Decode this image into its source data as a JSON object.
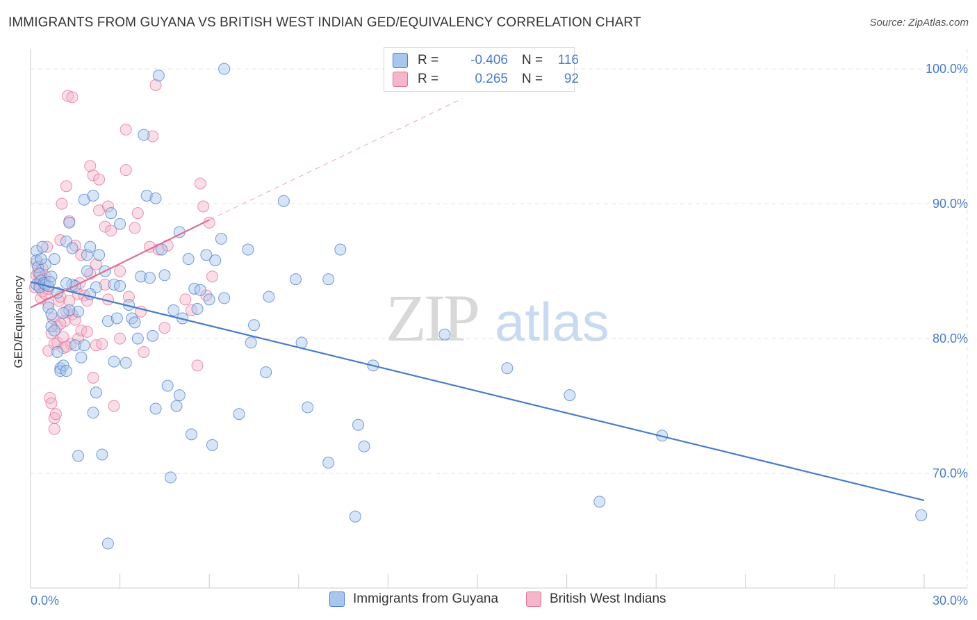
{
  "title": "IMMIGRANTS FROM GUYANA VS BRITISH WEST INDIAN GED/EQUIVALENCY CORRELATION CHART",
  "source": "Source: ZipAtlas.com",
  "watermark": {
    "zip": "ZIP",
    "atlas": "atlas"
  },
  "legend": {
    "rows": [
      {
        "r_label": "R =",
        "r_value": "-0.406",
        "n_label": "N =",
        "n_value": "116"
      },
      {
        "r_label": "R =",
        "r_value": "0.265",
        "n_label": "N =",
        "n_value": "92"
      }
    ]
  },
  "colors": {
    "blue": "#4a7cc7",
    "pink": "#e07095",
    "blue_fill": "#a9c6ee",
    "pink_fill": "#f5b6c9",
    "grid": "#e3e3e3"
  },
  "chart_data": {
    "type": "scatter",
    "ylabel": "GED/Equivalency",
    "xlim": [
      0,
      30
    ],
    "ylim": [
      61.5,
      101.5
    ],
    "x_tick_labels": [
      {
        "x": 0,
        "label": "0.0%"
      },
      {
        "x": 30,
        "label": "30.0%"
      }
    ],
    "y_tick_labels": [
      {
        "y": 70,
        "label": "70.0%"
      },
      {
        "y": 80,
        "label": "80.0%"
      },
      {
        "y": 90,
        "label": "90.0%"
      },
      {
        "y": 100,
        "label": "100.0%"
      }
    ],
    "grid": true,
    "legend_position": "top-center",
    "series": [
      {
        "name": "Immigrants from Guyana",
        "color": "#4a7cc7",
        "trend": {
          "x0": 0,
          "y0": 84.2,
          "x1": 30,
          "y1": 68.0,
          "style": "solid"
        },
        "points": [
          [
            0.2,
            86.5
          ],
          [
            0.2,
            85.8
          ],
          [
            0.25,
            85.3
          ],
          [
            0.3,
            84.8
          ],
          [
            0.35,
            84.3
          ],
          [
            0.4,
            86.8
          ],
          [
            0.2,
            84.0
          ],
          [
            0.3,
            83.8
          ],
          [
            0.45,
            84.1
          ],
          [
            0.5,
            84.0
          ],
          [
            0.6,
            83.9
          ],
          [
            0.6,
            82.3
          ],
          [
            0.7,
            81.8
          ],
          [
            0.7,
            80.9
          ],
          [
            0.8,
            80.6
          ],
          [
            0.8,
            85.9
          ],
          [
            0.9,
            79.0
          ],
          [
            1.0,
            77.8
          ],
          [
            1.0,
            77.6
          ],
          [
            1.1,
            78.0
          ],
          [
            1.2,
            77.6
          ],
          [
            1.2,
            87.2
          ],
          [
            1.3,
            88.6
          ],
          [
            1.4,
            86.7
          ],
          [
            1.4,
            84.0
          ],
          [
            1.5,
            83.9
          ],
          [
            1.5,
            79.5
          ],
          [
            1.6,
            82.0
          ],
          [
            1.7,
            78.6
          ],
          [
            1.8,
            90.3
          ],
          [
            1.8,
            79.5
          ],
          [
            1.9,
            86.2
          ],
          [
            1.9,
            85.0
          ],
          [
            2.0,
            86.8
          ],
          [
            2.1,
            90.6
          ],
          [
            2.2,
            83.8
          ],
          [
            2.2,
            76.0
          ],
          [
            2.1,
            74.5
          ],
          [
            2.3,
            86.2
          ],
          [
            2.5,
            85.0
          ],
          [
            2.6,
            81.3
          ],
          [
            2.7,
            89.3
          ],
          [
            2.8,
            84.0
          ],
          [
            2.8,
            78.3
          ],
          [
            2.9,
            81.5
          ],
          [
            3.0,
            88.5
          ],
          [
            3.2,
            78.2
          ],
          [
            3.3,
            82.5
          ],
          [
            3.4,
            81.5
          ],
          [
            3.5,
            81.2
          ],
          [
            3.6,
            80.0
          ],
          [
            3.7,
            84.6
          ],
          [
            3.8,
            95.1
          ],
          [
            3.9,
            90.6
          ],
          [
            4.0,
            84.5
          ],
          [
            4.1,
            80.2
          ],
          [
            4.2,
            90.4
          ],
          [
            4.3,
            99.5
          ],
          [
            4.4,
            86.6
          ],
          [
            4.5,
            84.7
          ],
          [
            4.6,
            76.5
          ],
          [
            4.7,
            69.7
          ],
          [
            4.8,
            82.1
          ],
          [
            4.9,
            75.0
          ],
          [
            5.0,
            87.9
          ],
          [
            5.0,
            75.8
          ],
          [
            5.1,
            81.5
          ],
          [
            5.3,
            85.9
          ],
          [
            5.4,
            72.9
          ],
          [
            5.5,
            83.7
          ],
          [
            5.6,
            82.2
          ],
          [
            5.7,
            83.6
          ],
          [
            5.9,
            86.2
          ],
          [
            6.0,
            82.9
          ],
          [
            6.1,
            72.1
          ],
          [
            6.2,
            85.8
          ],
          [
            6.4,
            87.4
          ],
          [
            6.5,
            100.0
          ],
          [
            6.5,
            83.0
          ],
          [
            7.0,
            74.4
          ],
          [
            7.3,
            86.6
          ],
          [
            7.4,
            79.7
          ],
          [
            7.5,
            81.0
          ],
          [
            7.9,
            77.5
          ],
          [
            8.0,
            83.1
          ],
          [
            8.5,
            90.2
          ],
          [
            8.9,
            84.4
          ],
          [
            9.1,
            79.7
          ],
          [
            9.3,
            74.9
          ],
          [
            10.0,
            70.8
          ],
          [
            10.0,
            84.4
          ],
          [
            10.4,
            86.6
          ],
          [
            10.9,
            66.8
          ],
          [
            11.0,
            73.6
          ],
          [
            11.2,
            72.0
          ],
          [
            11.5,
            78.0
          ],
          [
            13.9,
            80.3
          ],
          [
            16.0,
            77.8
          ],
          [
            18.1,
            75.8
          ],
          [
            19.1,
            67.9
          ],
          [
            21.2,
            72.8
          ],
          [
            29.9,
            66.9
          ],
          [
            1.6,
            71.3
          ],
          [
            2.4,
            71.4
          ],
          [
            2.6,
            64.8
          ],
          [
            4.2,
            74.8
          ],
          [
            1.2,
            84.1
          ],
          [
            0.9,
            83.4
          ],
          [
            1.3,
            82.1
          ],
          [
            0.7,
            84.6
          ],
          [
            2.0,
            83.3
          ],
          [
            3.0,
            83.9
          ],
          [
            1.1,
            81.9
          ],
          [
            0.5,
            85.5
          ],
          [
            0.35,
            85.9
          ],
          [
            0.65,
            84.2
          ]
        ]
      },
      {
        "name": "British West Indians",
        "color": "#e07095",
        "trend": {
          "x0": 0,
          "y0": 82.3,
          "x1": 6.0,
          "y1": 88.8,
          "style": "solid",
          "extend_to": {
            "x": 14.5,
            "y": 97.8
          },
          "extend_style": "dashed"
        },
        "points": [
          [
            0.2,
            85.6
          ],
          [
            0.25,
            84.9
          ],
          [
            0.3,
            84.5
          ],
          [
            0.3,
            83.9
          ],
          [
            0.35,
            83.0
          ],
          [
            0.4,
            83.5
          ],
          [
            0.45,
            84.4
          ],
          [
            0.5,
            84.6
          ],
          [
            0.5,
            83.3
          ],
          [
            0.55,
            86.8
          ],
          [
            0.6,
            82.6
          ],
          [
            0.6,
            79.1
          ],
          [
            0.65,
            75.6
          ],
          [
            0.7,
            75.2
          ],
          [
            0.7,
            80.4
          ],
          [
            0.75,
            81.5
          ],
          [
            0.8,
            73.3
          ],
          [
            0.8,
            74.1
          ],
          [
            0.85,
            74.4
          ],
          [
            0.9,
            79.7
          ],
          [
            0.9,
            80.9
          ],
          [
            0.95,
            82.8
          ],
          [
            1.0,
            83.1
          ],
          [
            1.0,
            87.3
          ],
          [
            1.05,
            90.0
          ],
          [
            1.1,
            79.3
          ],
          [
            1.1,
            80.1
          ],
          [
            1.15,
            81.3
          ],
          [
            1.2,
            82.0
          ],
          [
            1.2,
            91.3
          ],
          [
            1.25,
            98.0
          ],
          [
            1.3,
            88.7
          ],
          [
            1.3,
            82.8
          ],
          [
            1.35,
            79.6
          ],
          [
            1.4,
            81.8
          ],
          [
            1.4,
            97.9
          ],
          [
            1.5,
            81.4
          ],
          [
            1.5,
            86.9
          ],
          [
            1.6,
            80.0
          ],
          [
            1.6,
            83.3
          ],
          [
            1.65,
            84.1
          ],
          [
            1.7,
            80.6
          ],
          [
            1.8,
            83.2
          ],
          [
            1.9,
            82.8
          ],
          [
            2.0,
            92.8
          ],
          [
            2.1,
            92.1
          ],
          [
            2.1,
            77.1
          ],
          [
            2.2,
            79.5
          ],
          [
            2.3,
            89.5
          ],
          [
            2.3,
            91.8
          ],
          [
            2.4,
            79.6
          ],
          [
            2.5,
            84.0
          ],
          [
            2.5,
            88.3
          ],
          [
            2.6,
            89.8
          ],
          [
            2.6,
            82.9
          ],
          [
            2.7,
            88.0
          ],
          [
            2.8,
            75.0
          ],
          [
            3.0,
            80.0
          ],
          [
            3.0,
            85.0
          ],
          [
            3.2,
            92.5
          ],
          [
            3.2,
            95.5
          ],
          [
            3.3,
            83.1
          ],
          [
            3.5,
            88.2
          ],
          [
            3.6,
            89.3
          ],
          [
            3.7,
            82.0
          ],
          [
            3.8,
            79.0
          ],
          [
            4.0,
            86.8
          ],
          [
            4.1,
            95.0
          ],
          [
            4.2,
            98.8
          ],
          [
            4.3,
            86.6
          ],
          [
            4.5,
            80.8
          ],
          [
            4.6,
            86.9
          ],
          [
            5.2,
            82.9
          ],
          [
            5.4,
            82.1
          ],
          [
            5.6,
            78.0
          ],
          [
            5.7,
            91.5
          ],
          [
            5.8,
            89.8
          ],
          [
            5.9,
            83.2
          ],
          [
            6.0,
            88.6
          ],
          [
            6.1,
            84.6
          ],
          [
            0.3,
            84.1
          ],
          [
            0.4,
            85.2
          ],
          [
            0.15,
            83.8
          ],
          [
            0.2,
            84.7
          ],
          [
            1.7,
            86.2
          ],
          [
            2.0,
            84.8
          ],
          [
            1.0,
            81.1
          ],
          [
            0.8,
            79.6
          ],
          [
            2.2,
            85.5
          ],
          [
            1.9,
            80.5
          ],
          [
            0.6,
            83.7
          ],
          [
            1.2,
            79.4
          ]
        ]
      }
    ]
  }
}
